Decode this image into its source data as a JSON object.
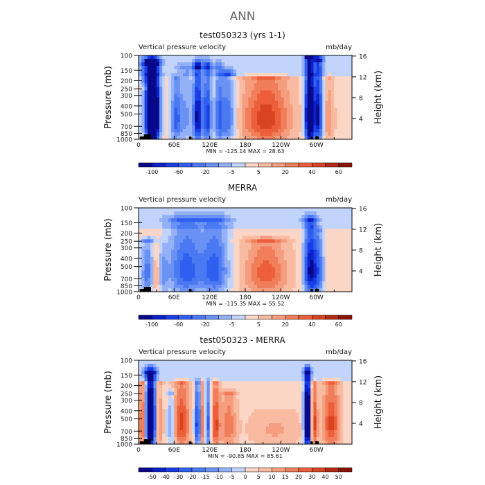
{
  "figure_title": "ANN",
  "chart_data": [
    {
      "type": "heatmap",
      "title": "test050323 (yrs 1-1)",
      "left_label": "Vertical pressure velocity",
      "right_label": "mb/day",
      "ylabel": "Pressure (mb)",
      "ylabel_right": "Height (km)",
      "xticks": [
        "0",
        "60E",
        "120E",
        "180",
        "120W",
        "60W"
      ],
      "xtick_lon": [
        0,
        60,
        120,
        180,
        240,
        300
      ],
      "yticks": [
        "100",
        "150",
        "200",
        "250",
        "300",
        "400",
        "500",
        "700",
        "850",
        "1000"
      ],
      "yticks_right": [
        "16",
        "12",
        "8",
        "4"
      ],
      "ytick_right_height": [
        16,
        12,
        8,
        4
      ],
      "stats": "MIN = -125.14   MAX =  28.63",
      "cbar_labels": [
        "-100",
        "-60",
        "-20",
        "-5",
        "5",
        "20",
        "40",
        "60"
      ],
      "cbar_label_index": [
        1,
        3,
        5,
        7,
        9,
        11,
        13,
        15
      ],
      "cbar_colors": [
        "#08088a",
        "#0b20c8",
        "#1a3ee6",
        "#2f5fef",
        "#4a79f2",
        "#6a92f4",
        "#94b1f7",
        "#c2d4fb",
        "#fbd6c6",
        "#f8bba1",
        "#f59d7e",
        "#f17e5b",
        "#ec5f3a",
        "#d94420",
        "#b52a10",
        "#8a1306"
      ],
      "field_features": [
        {
          "lon": 20,
          "strength": -1.6,
          "width": 9,
          "top_level": 130
        },
        {
          "lon": 28,
          "strength": -0.7,
          "width": 6,
          "top_level": 130
        },
        {
          "lon": 10,
          "strength": 0.4,
          "width": 5,
          "top_level": 250
        },
        {
          "lon": 63,
          "strength": -0.55,
          "width": 6,
          "top_level": 200
        },
        {
          "lon": 80,
          "strength": -0.35,
          "width": 10,
          "top_level": 150
        },
        {
          "lon": 100,
          "strength": -1.0,
          "width": 5,
          "top_level": 140
        },
        {
          "lon": 116,
          "strength": -0.8,
          "width": 5,
          "top_level": 140
        },
        {
          "lon": 135,
          "strength": -0.5,
          "width": 5,
          "top_level": 150
        },
        {
          "lon": 150,
          "strength": -0.6,
          "width": 9,
          "top_level": 170
        },
        {
          "lon": 215,
          "strength": 0.65,
          "width": 28,
          "top_level": 200
        },
        {
          "lon": 288,
          "strength": -1.6,
          "width": 5,
          "top_level": 110
        },
        {
          "lon": 303,
          "strength": -1.0,
          "width": 6,
          "top_level": 120
        },
        {
          "lon": 320,
          "strength": 0.3,
          "width": 7,
          "top_level": 200
        }
      ]
    },
    {
      "type": "heatmap",
      "title": "MERRA",
      "left_label": "Vertical pressure velocity",
      "right_label": "mb/day",
      "ylabel": "Pressure (mb)",
      "ylabel_right": "Height (km)",
      "xticks": [
        "0",
        "60E",
        "120E",
        "180",
        "120W",
        "60W"
      ],
      "xtick_lon": [
        0,
        60,
        120,
        180,
        240,
        300
      ],
      "yticks": [
        "100",
        "150",
        "200",
        "250",
        "300",
        "400",
        "500",
        "700",
        "850",
        "1000"
      ],
      "yticks_right": [
        "16",
        "12",
        "8",
        "4"
      ],
      "ytick_right_height": [
        16,
        12,
        8,
        4
      ],
      "stats": "MIN = -115.35   MAX =  55.52",
      "cbar_labels": [
        "-100",
        "-60",
        "-20",
        "-5",
        "5",
        "20",
        "40",
        "60"
      ],
      "cbar_label_index": [
        1,
        3,
        5,
        7,
        9,
        11,
        13,
        15
      ],
      "cbar_colors": [
        "#08088a",
        "#0b20c8",
        "#1a3ee6",
        "#2f5fef",
        "#4a79f2",
        "#6a92f4",
        "#94b1f7",
        "#c2d4fb",
        "#fbd6c6",
        "#f8bba1",
        "#f59d7e",
        "#f17e5b",
        "#ec5f3a",
        "#d94420",
        "#b52a10",
        "#8a1306"
      ],
      "field_features": [
        {
          "lon": 15,
          "strength": -0.5,
          "width": 8,
          "top_level": 250
        },
        {
          "lon": 30,
          "strength": 0.35,
          "width": 5,
          "top_level": 300
        },
        {
          "lon": 40,
          "strength": -0.3,
          "width": 6,
          "top_level": 300
        },
        {
          "lon": 80,
          "strength": -0.65,
          "width": 22,
          "top_level": 150
        },
        {
          "lon": 130,
          "strength": -0.6,
          "width": 16,
          "top_level": 150
        },
        {
          "lon": 215,
          "strength": 0.5,
          "width": 25,
          "top_level": 250
        },
        {
          "lon": 290,
          "strength": -1.0,
          "width": 8,
          "top_level": 150
        },
        {
          "lon": 305,
          "strength": -0.45,
          "width": 6,
          "top_level": 200
        }
      ]
    },
    {
      "type": "heatmap",
      "title": "test050323 - MERRA",
      "left_label": "Vertical pressure velocity",
      "right_label": "mb/day",
      "ylabel": "Pressure (mb)",
      "ylabel_right": "Height (km)",
      "xticks": [
        "0",
        "60E",
        "120E",
        "180",
        "120W",
        "60W"
      ],
      "xtick_lon": [
        0,
        60,
        120,
        180,
        240,
        300
      ],
      "yticks": [
        "100",
        "150",
        "200",
        "250",
        "300",
        "400",
        "500",
        "700",
        "850",
        "1000"
      ],
      "yticks_right": [
        "16",
        "12",
        "8",
        "4"
      ],
      "ytick_right_height": [
        16,
        12,
        8,
        4
      ],
      "stats": "MIN = -90.85   MAX =  85.61",
      "cbar_labels": [
        "-50",
        "-40",
        "-30",
        "-20",
        "-15",
        "-10",
        "-5",
        "0",
        "5",
        "10",
        "15",
        "20",
        "30",
        "40",
        "50"
      ],
      "cbar_label_index": [
        1,
        2,
        3,
        4,
        5,
        6,
        7,
        8,
        9,
        10,
        11,
        12,
        13,
        14,
        15
      ],
      "cbar_colors": [
        "#08088a",
        "#0b20c8",
        "#1a3ee6",
        "#2f5fef",
        "#4a79f2",
        "#6a92f4",
        "#94b1f7",
        "#c2d4fb",
        "#fbd6c6",
        "#f8bba1",
        "#f59d7e",
        "#f17e5b",
        "#ec5f3a",
        "#d94420",
        "#b52a10",
        "#8a1306"
      ],
      "field_features": [
        {
          "lon": 8,
          "strength": 0.75,
          "width": 5,
          "top_level": 200
        },
        {
          "lon": 20,
          "strength": -1.6,
          "width": 7,
          "top_level": 150
        },
        {
          "lon": 33,
          "strength": 0.5,
          "width": 5,
          "top_level": 200
        },
        {
          "lon": 55,
          "strength": -0.4,
          "width": 5,
          "top_level": 250
        },
        {
          "lon": 72,
          "strength": 0.6,
          "width": 10,
          "top_level": 200
        },
        {
          "lon": 100,
          "strength": -0.9,
          "width": 4,
          "top_level": 200
        },
        {
          "lon": 108,
          "strength": 0.6,
          "width": 4,
          "top_level": 200
        },
        {
          "lon": 116,
          "strength": -0.7,
          "width": 4,
          "top_level": 200
        },
        {
          "lon": 130,
          "strength": 0.6,
          "width": 5,
          "top_level": 200
        },
        {
          "lon": 152,
          "strength": 0.4,
          "width": 9,
          "top_level": 250
        },
        {
          "lon": 230,
          "strength": 0.2,
          "width": 30,
          "top_level": 400
        },
        {
          "lon": 285,
          "strength": -1.6,
          "width": 4,
          "top_level": 150
        },
        {
          "lon": 296,
          "strength": 0.6,
          "width": 4,
          "top_level": 200
        },
        {
          "lon": 325,
          "strength": 0.6,
          "width": 10,
          "top_level": 200
        }
      ]
    }
  ]
}
